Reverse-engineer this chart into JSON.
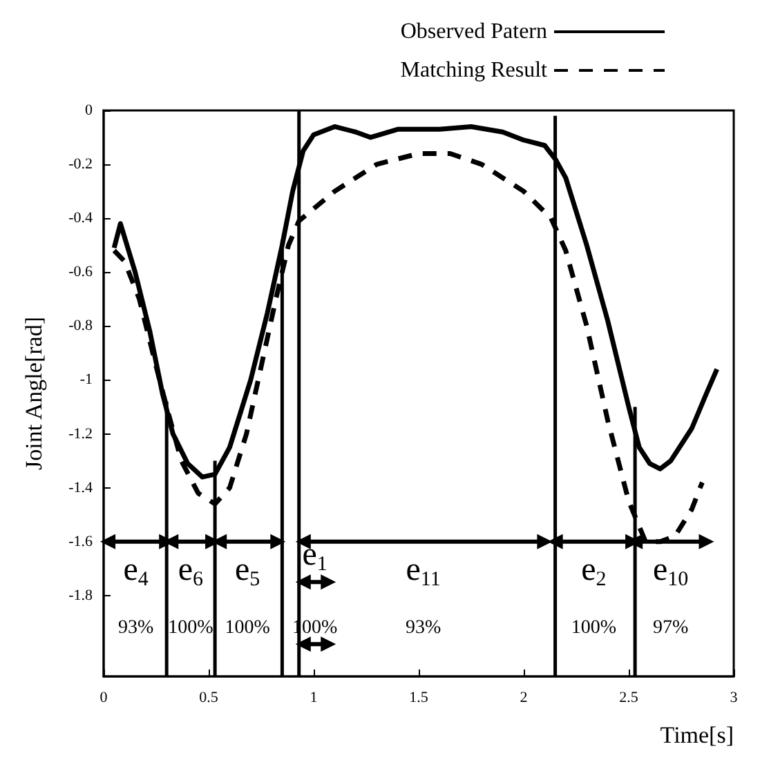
{
  "chart_data": {
    "type": "line",
    "xlabel": "Time[s]",
    "ylabel": "Joint Angle[rad]",
    "xlim": [
      0,
      3
    ],
    "xticks": [
      0,
      0.5,
      1,
      1.5,
      2,
      2.5,
      3
    ],
    "ylim": [
      -2.1,
      0
    ],
    "yticks": [
      0,
      -0.2,
      -0.4,
      -0.6,
      -0.8,
      -1,
      -1.2,
      -1.4,
      -1.6,
      -1.8
    ],
    "grid": false,
    "legend": "top right",
    "series": [
      {
        "name": "Observed Patern",
        "color": "#000000",
        "line_style": "solid",
        "marker": "none",
        "x": [
          0.05,
          0.08,
          0.15,
          0.22,
          0.28,
          0.33,
          0.4,
          0.47,
          0.53,
          0.6,
          0.7,
          0.78,
          0.85,
          0.9,
          0.95,
          1.0,
          1.1,
          1.2,
          1.27,
          1.4,
          1.6,
          1.75,
          1.9,
          2.0,
          2.1,
          2.15,
          2.2,
          2.3,
          2.4,
          2.5,
          2.55,
          2.6,
          2.65,
          2.7,
          2.8,
          2.87,
          2.92
        ],
        "values": [
          -0.51,
          -0.42,
          -0.6,
          -0.82,
          -1.05,
          -1.2,
          -1.31,
          -1.36,
          -1.35,
          -1.25,
          -1.0,
          -0.75,
          -0.5,
          -0.3,
          -0.15,
          -0.09,
          -0.06,
          -0.08,
          -0.1,
          -0.07,
          -0.07,
          -0.06,
          -0.08,
          -0.11,
          -0.13,
          -0.18,
          -0.25,
          -0.5,
          -0.78,
          -1.1,
          -1.25,
          -1.31,
          -1.33,
          -1.3,
          -1.18,
          -1.05,
          -0.96
        ]
      },
      {
        "name": "Matching Result",
        "color": "#000000",
        "line_style": "dashed",
        "marker": "none",
        "x": [
          0.05,
          0.1,
          0.17,
          0.25,
          0.3,
          0.37,
          0.45,
          0.53,
          0.6,
          0.68,
          0.75,
          0.82,
          0.88,
          0.93,
          1.1,
          1.3,
          1.5,
          1.65,
          1.8,
          2.0,
          2.13,
          2.2,
          2.3,
          2.4,
          2.5,
          2.58,
          2.65,
          2.72,
          2.8,
          2.85
        ],
        "values": [
          -0.52,
          -0.56,
          -0.7,
          -0.95,
          -1.1,
          -1.3,
          -1.42,
          -1.46,
          -1.4,
          -1.2,
          -0.95,
          -0.7,
          -0.5,
          -0.41,
          -0.3,
          -0.2,
          -0.16,
          -0.16,
          -0.2,
          -0.3,
          -0.4,
          -0.52,
          -0.8,
          -1.15,
          -1.45,
          -1.6,
          -1.6,
          -1.58,
          -1.48,
          -1.38
        ]
      },
      {
        "color": "#000000",
        "line_style": "solid",
        "marker": "none",
        "x": [
          0.3,
          0.3
        ],
        "values": [
          -1.08,
          -2.1
        ]
      },
      {
        "color": "#000000",
        "line_style": "solid",
        "marker": "none",
        "x": [
          0.53,
          0.53
        ],
        "values": [
          -1.3,
          -2.1
        ]
      },
      {
        "color": "#000000",
        "line_style": "solid",
        "marker": "none",
        "x": [
          0.85,
          0.85
        ],
        "values": [
          -0.48,
          -2.1
        ]
      },
      {
        "color": "#000000",
        "line_style": "solid",
        "marker": "none",
        "x": [
          0.93,
          0.93
        ],
        "values": [
          0,
          -2.1
        ]
      },
      {
        "color": "#000000",
        "line_style": "solid",
        "marker": "none",
        "x": [
          2.15,
          2.15
        ],
        "values": [
          -0.02,
          -2.1
        ]
      },
      {
        "color": "#000000",
        "line_style": "solid",
        "marker": "none",
        "x": [
          2.53,
          2.53
        ],
        "values": [
          -1.1,
          -2.1
        ]
      },
      {
        "color": "#000000",
        "line_style": "solid",
        "marker": "triangle",
        "x": [
          0.02,
          0.3
        ],
        "values": [
          -1.6,
          -1.6
        ]
      },
      {
        "color": "#000000",
        "line_style": "solid",
        "marker": "triangle",
        "x": [
          0.32,
          0.52
        ],
        "values": [
          -1.6,
          -1.6
        ]
      },
      {
        "color": "#000000",
        "line_style": "solid",
        "marker": "triangle",
        "x": [
          0.55,
          0.83
        ],
        "values": [
          -1.6,
          -1.6
        ]
      },
      {
        "color": "#000000",
        "line_style": "solid",
        "marker": "triangle",
        "x": [
          0.95,
          1.07
        ],
        "values": [
          -1.75,
          -1.75
        ]
      },
      {
        "color": "#000000",
        "line_style": "solid",
        "marker": "triangle",
        "x": [
          0.95,
          2.1
        ],
        "values": [
          -1.6,
          -1.6
        ]
      },
      {
        "color": "#000000",
        "line_style": "solid",
        "marker": "triangle",
        "x": [
          2.15,
          2.52
        ],
        "values": [
          -1.6,
          -1.6
        ]
      },
      {
        "color": "#000000",
        "line_style": "solid",
        "marker": "triangle",
        "x": [
          2.53,
          2.87
        ],
        "values": [
          -1.6,
          -1.6
        ]
      },
      {
        "color": "#000000",
        "line_style": "solid",
        "marker": "triangle",
        "x": [
          0.95,
          1.07
        ],
        "values": [
          -1.98,
          -1.98
        ]
      }
    ],
    "annotations": [
      "e$_{4}$",
      "e$_{6}$",
      "e$_{5}$",
      "e$_{1}$",
      "e$_{11}$",
      "e$_{2}$",
      "e$_{10}$",
      "93%",
      "100%",
      "100%",
      "100%",
      "93%",
      "100%",
      "97%"
    ]
  }
}
